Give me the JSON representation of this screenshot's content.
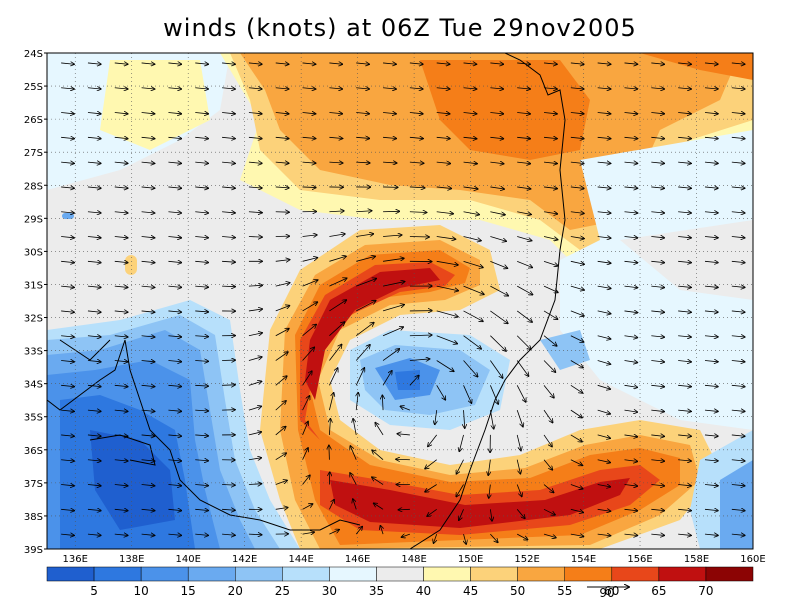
{
  "title": "winds (knots) at 06Z Tue 29nov2005",
  "map": {
    "lat_labels": [
      "24S",
      "25S",
      "26S",
      "27S",
      "28S",
      "29S",
      "30S",
      "31S",
      "32S",
      "33S",
      "34S",
      "35S",
      "36S",
      "37S",
      "38S",
      "39S"
    ],
    "lon_labels": [
      "136E",
      "138E",
      "140E",
      "142E",
      "144E",
      "146E",
      "148E",
      "150E",
      "152E",
      "154E",
      "156E",
      "158E",
      "160E"
    ],
    "lon_range": [
      135,
      160
    ],
    "lat_range": [
      -39,
      -24
    ],
    "grid": "dotted"
  },
  "colorbar": {
    "labels": [
      "5",
      "10",
      "15",
      "20",
      "25",
      "30",
      "35",
      "40",
      "45",
      "50",
      "55",
      "60",
      "65",
      "70"
    ],
    "colors": [
      "#1f5fcf",
      "#2e78e0",
      "#4b92ea",
      "#6aaaf0",
      "#8ec4f5",
      "#b7e0fb",
      "#e6f7ff",
      "#ececec",
      "#fff8b0",
      "#fcd27a",
      "#f9a640",
      "#f57e18",
      "#e8471a",
      "#c01010",
      "#8c0404"
    ],
    "reference_vector_label": "90"
  },
  "icons": {
    "wind_arrow": "wind-vector-arrow"
  }
}
